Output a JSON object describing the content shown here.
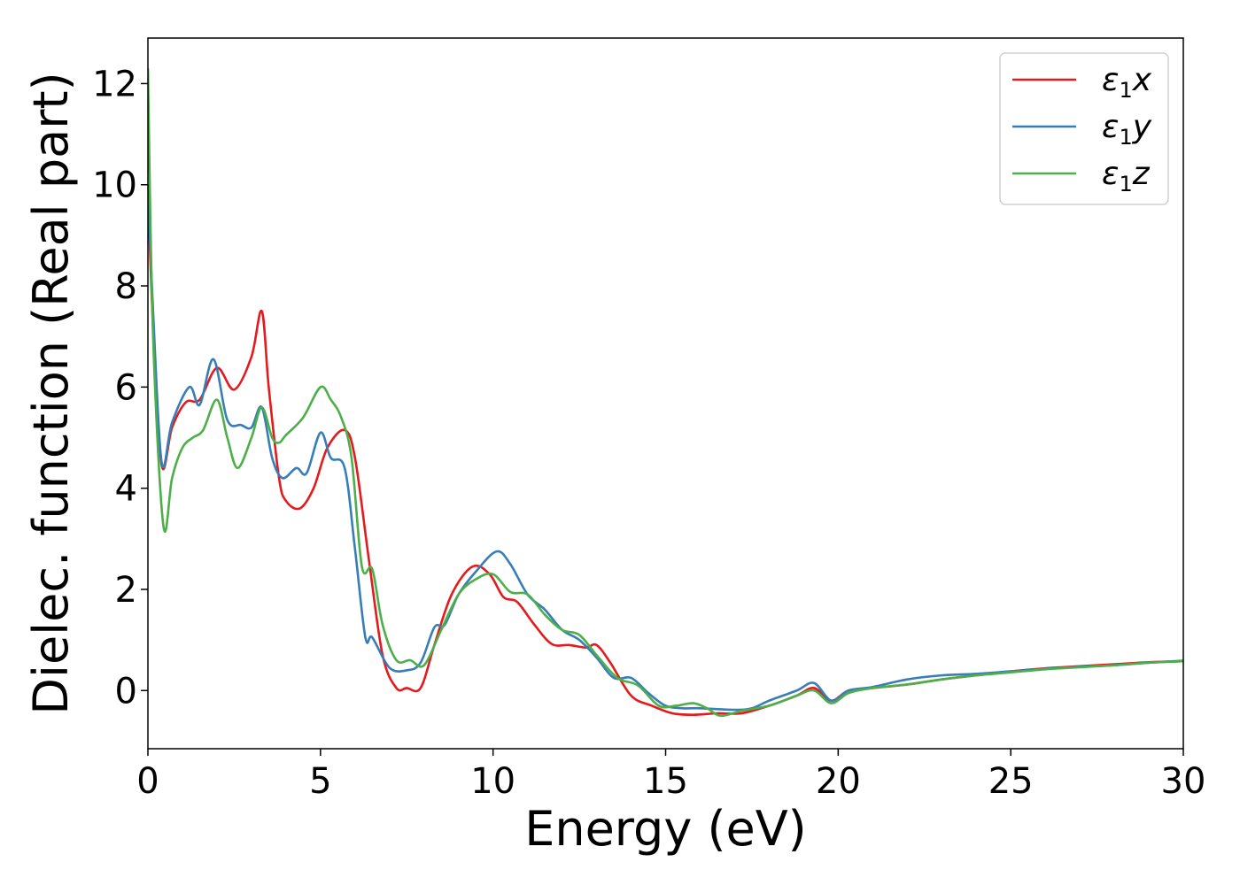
{
  "chart_data": {
    "type": "line",
    "xlabel": "Energy (eV)",
    "ylabel": "Dielec. function (Real part)",
    "xlim": [
      0,
      30
    ],
    "ylim": [
      -1.15,
      12.9
    ],
    "xticks": [
      0,
      5,
      10,
      15,
      20,
      25,
      30
    ],
    "xtick_labels": [
      "0",
      "5",
      "10",
      "15",
      "20",
      "25",
      "30"
    ],
    "yticks": [
      0,
      2,
      4,
      6,
      8,
      10,
      12
    ],
    "ytick_labels": [
      "0",
      "2",
      "4",
      "6",
      "8",
      "10",
      "12"
    ],
    "grid": false,
    "legend_position": "top-right",
    "series": [
      {
        "name": "ε₁x",
        "legend_base": "ε",
        "legend_sub": "1",
        "legend_var": "x",
        "color": "#e41a1c",
        "x": [
          0,
          0.15,
          0.4,
          0.7,
          1.1,
          1.5,
          2.0,
          2.5,
          3.0,
          3.3,
          3.5,
          3.8,
          4.0,
          4.4,
          4.8,
          5.2,
          5.7,
          6.0,
          6.4,
          6.8,
          7.2,
          7.5,
          7.9,
          8.3,
          8.8,
          9.4,
          9.9,
          10.3,
          10.7,
          11.2,
          11.7,
          12.2,
          12.7,
          13.0,
          13.4,
          14.0,
          14.6,
          15.2,
          15.8,
          16.5,
          17.2,
          18.0,
          18.8,
          19.3,
          19.8,
          20.3,
          21.0,
          22.0,
          23.0,
          24.0,
          25.0,
          26.0,
          27.0,
          28.0,
          29.0,
          30.0
        ],
        "values": [
          9.9,
          7.2,
          4.45,
          5.2,
          5.7,
          5.75,
          6.38,
          5.95,
          6.6,
          7.5,
          6.0,
          4.2,
          3.75,
          3.6,
          4.0,
          4.8,
          5.15,
          4.6,
          2.6,
          0.7,
          0.05,
          0.05,
          0.05,
          0.9,
          1.9,
          2.45,
          2.3,
          1.85,
          1.75,
          1.3,
          0.92,
          0.9,
          0.85,
          0.9,
          0.55,
          -0.1,
          -0.3,
          -0.45,
          -0.48,
          -0.45,
          -0.45,
          -0.3,
          -0.1,
          0.05,
          -0.2,
          0.0,
          0.05,
          0.12,
          0.22,
          0.3,
          0.38,
          0.44,
          0.48,
          0.52,
          0.56,
          0.58
        ]
      },
      {
        "name": "ε₁y",
        "legend_base": "ε",
        "legend_sub": "1",
        "legend_var": "y",
        "color": "#377eb8",
        "x": [
          0,
          0.15,
          0.4,
          0.7,
          1.2,
          1.5,
          1.9,
          2.3,
          2.7,
          3.0,
          3.3,
          3.6,
          3.9,
          4.3,
          4.6,
          5.0,
          5.3,
          5.7,
          6.0,
          6.3,
          6.5,
          7.0,
          7.5,
          7.9,
          8.3,
          8.6,
          9.0,
          9.5,
          10.1,
          10.5,
          11.0,
          11.5,
          12.0,
          12.5,
          13.0,
          13.5,
          14.0,
          14.5,
          15.0,
          15.5,
          16.0,
          17.0,
          17.5,
          18.0,
          18.8,
          19.3,
          19.8,
          20.3,
          21.0,
          22.0,
          23.0,
          24.0,
          25.0,
          26.0,
          27.0,
          28.0,
          29.0,
          30.0
        ],
        "values": [
          10.0,
          7.5,
          4.5,
          5.3,
          6.0,
          5.65,
          6.55,
          5.35,
          5.25,
          5.2,
          5.6,
          4.6,
          4.2,
          4.4,
          4.3,
          5.1,
          4.6,
          4.4,
          2.8,
          1.05,
          1.05,
          0.45,
          0.4,
          0.55,
          1.25,
          1.3,
          1.9,
          2.35,
          2.75,
          2.5,
          1.9,
          1.6,
          1.2,
          1.0,
          0.65,
          0.25,
          0.25,
          -0.05,
          -0.3,
          -0.35,
          -0.35,
          -0.38,
          -0.35,
          -0.2,
          0.0,
          0.15,
          -0.2,
          0.0,
          0.07,
          0.22,
          0.3,
          0.33,
          0.38,
          0.43,
          0.47,
          0.5,
          0.55,
          0.59
        ]
      },
      {
        "name": "ε₁z",
        "legend_base": "ε",
        "legend_sub": "1",
        "legend_var": "z",
        "color": "#4daf4a",
        "x": [
          0,
          0.15,
          0.45,
          0.7,
          1.0,
          1.3,
          1.6,
          2.0,
          2.3,
          2.6,
          3.0,
          3.3,
          3.6,
          3.8,
          4.0,
          4.5,
          5.0,
          5.3,
          5.6,
          5.9,
          6.2,
          6.5,
          6.8,
          7.2,
          7.6,
          8.0,
          8.5,
          9.0,
          9.5,
          10.0,
          10.5,
          11.0,
          11.5,
          12.0,
          12.5,
          13.0,
          13.6,
          14.2,
          14.8,
          15.3,
          15.8,
          16.2,
          16.6,
          17.2,
          18.0,
          18.8,
          19.3,
          19.8,
          20.3,
          21.0,
          22.0,
          23.0,
          24.0,
          25.0,
          26.0,
          27.0,
          28.0,
          29.0,
          30.0
        ],
        "values": [
          12.3,
          7.0,
          3.25,
          4.2,
          4.8,
          5.0,
          5.15,
          5.75,
          5.0,
          4.4,
          5.0,
          5.6,
          5.0,
          4.9,
          5.05,
          5.4,
          6.0,
          5.75,
          5.4,
          4.6,
          2.45,
          2.4,
          1.3,
          0.6,
          0.6,
          0.5,
          1.2,
          1.9,
          2.2,
          2.3,
          1.95,
          1.9,
          1.5,
          1.2,
          1.1,
          0.7,
          0.25,
          0.1,
          -0.3,
          -0.3,
          -0.25,
          -0.35,
          -0.5,
          -0.4,
          -0.3,
          -0.1,
          0.0,
          -0.25,
          -0.05,
          0.05,
          0.12,
          0.22,
          0.3,
          0.36,
          0.42,
          0.46,
          0.5,
          0.55,
          0.58
        ]
      }
    ]
  }
}
